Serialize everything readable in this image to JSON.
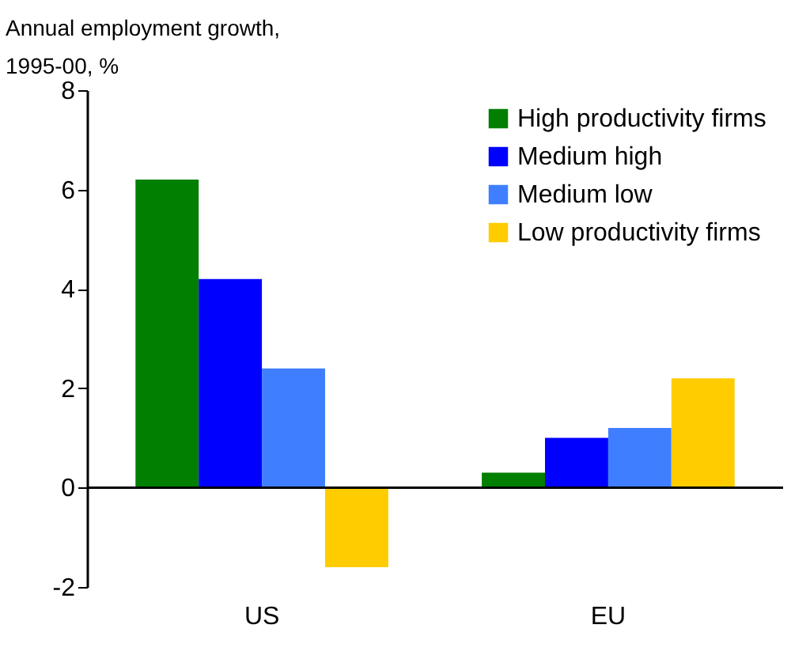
{
  "chart_data": {
    "type": "bar",
    "ylabel": "Annual employment growth, 1995-00, %",
    "categories": [
      "US",
      "EU"
    ],
    "series": [
      {
        "name": "High productivity firms",
        "color": "#007f00",
        "values": [
          6.2,
          0.3
        ]
      },
      {
        "name": "Medium high",
        "color": "#0000ff",
        "values": [
          4.2,
          1.0
        ]
      },
      {
        "name": "Medium low",
        "color": "#3f7fff",
        "values": [
          2.4,
          1.2
        ]
      },
      {
        "name": "Low productivity firms",
        "color": "#ffcc00",
        "values": [
          -1.6,
          2.2
        ]
      }
    ],
    "ylim": [
      -2,
      8
    ],
    "yticks": [
      -2,
      0,
      2,
      4,
      6,
      8
    ],
    "legend": "top right"
  }
}
